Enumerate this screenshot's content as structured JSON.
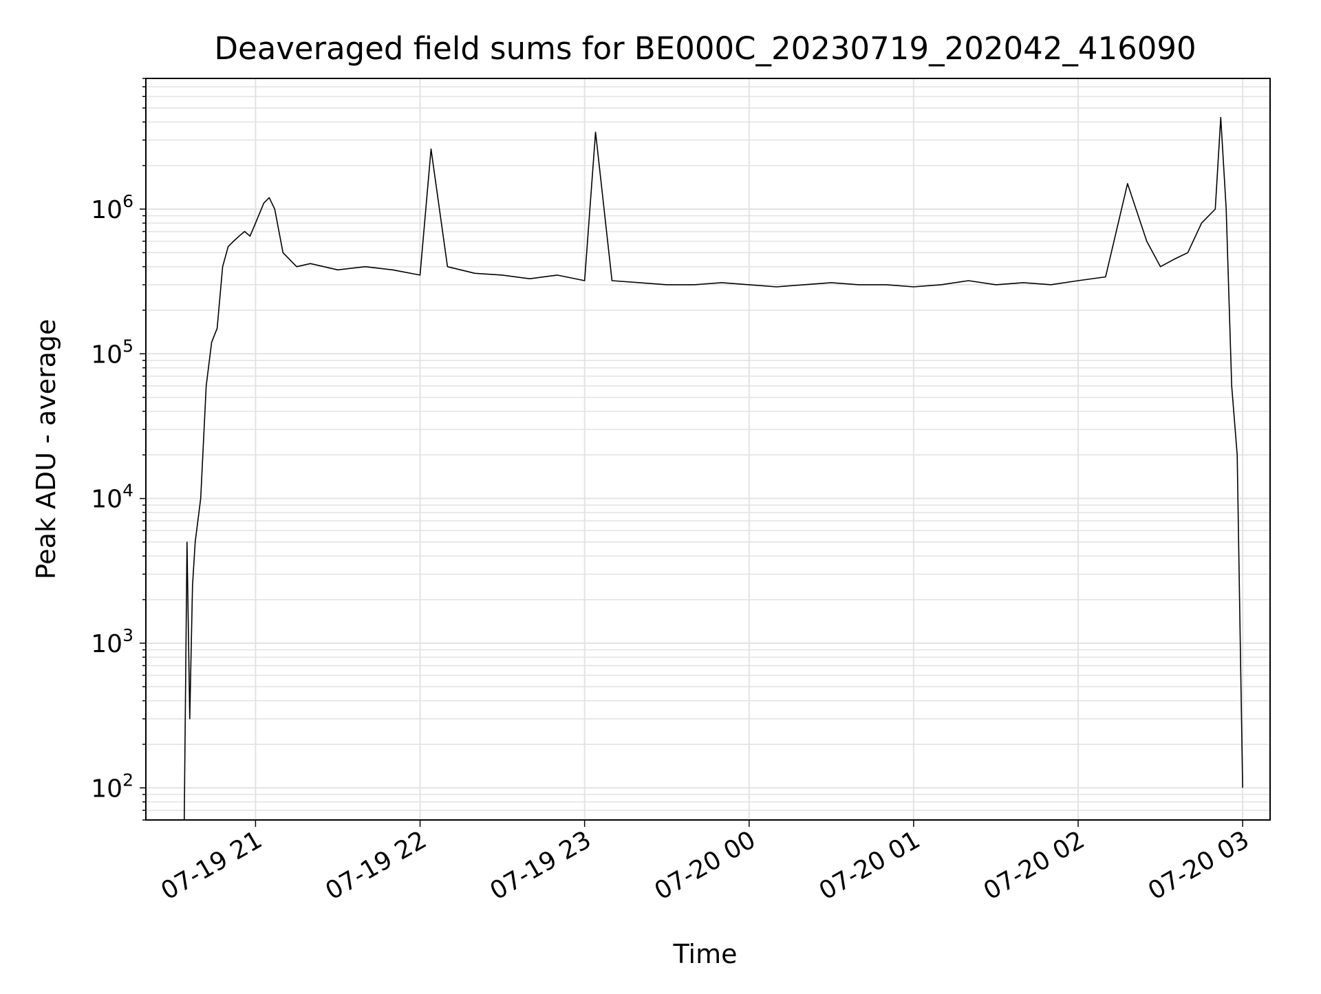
{
  "chart_data": {
    "type": "line",
    "title": "Deaveraged field sums for BE000C_20230719_202042_416090",
    "xlabel": "Time",
    "ylabel": "Peak ADU - average",
    "yscale": "log",
    "ylim": [
      60,
      8000000
    ],
    "xlim": [
      "2023-07-19 20:20",
      "2023-07-20 03:10"
    ],
    "grid": true,
    "line_color": "#000000",
    "x_ticks": [
      {
        "label": "07-19 21",
        "time": "2023-07-19 21:00"
      },
      {
        "label": "07-19 22",
        "time": "2023-07-19 22:00"
      },
      {
        "label": "07-19 23",
        "time": "2023-07-19 23:00"
      },
      {
        "label": "07-20 00",
        "time": "2023-07-20 00:00"
      },
      {
        "label": "07-20 01",
        "time": "2023-07-20 01:00"
      },
      {
        "label": "07-20 02",
        "time": "2023-07-20 02:00"
      },
      {
        "label": "07-20 03",
        "time": "2023-07-20 03:00"
      }
    ],
    "y_ticks": [
      {
        "base": "10",
        "exp": "2",
        "value": 100
      },
      {
        "base": "10",
        "exp": "3",
        "value": 1000
      },
      {
        "base": "10",
        "exp": "4",
        "value": 10000
      },
      {
        "base": "10",
        "exp": "5",
        "value": 100000
      },
      {
        "base": "10",
        "exp": "6",
        "value": 1000000
      }
    ],
    "series": [
      {
        "x": [
          "2023-07-19 20:34",
          "2023-07-19 20:35",
          "2023-07-19 20:36",
          "2023-07-19 20:37",
          "2023-07-19 20:38",
          "2023-07-19 20:40",
          "2023-07-19 20:42",
          "2023-07-19 20:44",
          "2023-07-19 20:46",
          "2023-07-19 20:48",
          "2023-07-19 20:50",
          "2023-07-19 20:52",
          "2023-07-19 20:54",
          "2023-07-19 20:56",
          "2023-07-19 20:58",
          "2023-07-19 21:00",
          "2023-07-19 21:03",
          "2023-07-19 21:05",
          "2023-07-19 21:07",
          "2023-07-19 21:10",
          "2023-07-19 21:15",
          "2023-07-19 21:20",
          "2023-07-19 21:30",
          "2023-07-19 21:40",
          "2023-07-19 21:50",
          "2023-07-19 22:00",
          "2023-07-19 22:04",
          "2023-07-19 22:10",
          "2023-07-19 22:20",
          "2023-07-19 22:30",
          "2023-07-19 22:40",
          "2023-07-19 22:50",
          "2023-07-19 23:00",
          "2023-07-19 23:04",
          "2023-07-19 23:10",
          "2023-07-19 23:20",
          "2023-07-19 23:30",
          "2023-07-19 23:40",
          "2023-07-19 23:50",
          "2023-07-20 00:00",
          "2023-07-20 00:10",
          "2023-07-20 00:20",
          "2023-07-20 00:30",
          "2023-07-20 00:40",
          "2023-07-20 00:50",
          "2023-07-20 01:00",
          "2023-07-20 01:10",
          "2023-07-20 01:20",
          "2023-07-20 01:30",
          "2023-07-20 01:40",
          "2023-07-20 01:50",
          "2023-07-20 02:00",
          "2023-07-20 02:10",
          "2023-07-20 02:18",
          "2023-07-20 02:25",
          "2023-07-20 02:30",
          "2023-07-20 02:35",
          "2023-07-20 02:40",
          "2023-07-20 02:45",
          "2023-07-20 02:50",
          "2023-07-20 02:52",
          "2023-07-20 02:54",
          "2023-07-20 02:56",
          "2023-07-20 02:58",
          "2023-07-20 03:00"
        ],
        "y": [
          60,
          5000,
          300,
          2500,
          5000,
          10000,
          60000,
          120000,
          150000,
          400000,
          550000,
          600000,
          650000,
          700000,
          650000,
          800000,
          1100000,
          1200000,
          1000000,
          500000,
          400000,
          420000,
          380000,
          400000,
          380000,
          350000,
          2600000,
          400000,
          360000,
          350000,
          330000,
          350000,
          320000,
          3400000,
          320000,
          310000,
          300000,
          300000,
          310000,
          300000,
          290000,
          300000,
          310000,
          300000,
          300000,
          290000,
          300000,
          320000,
          300000,
          310000,
          300000,
          320000,
          340000,
          1500000,
          600000,
          400000,
          450000,
          500000,
          800000,
          1000000,
          4300000,
          1000000,
          60000,
          20000,
          100
        ]
      }
    ]
  }
}
